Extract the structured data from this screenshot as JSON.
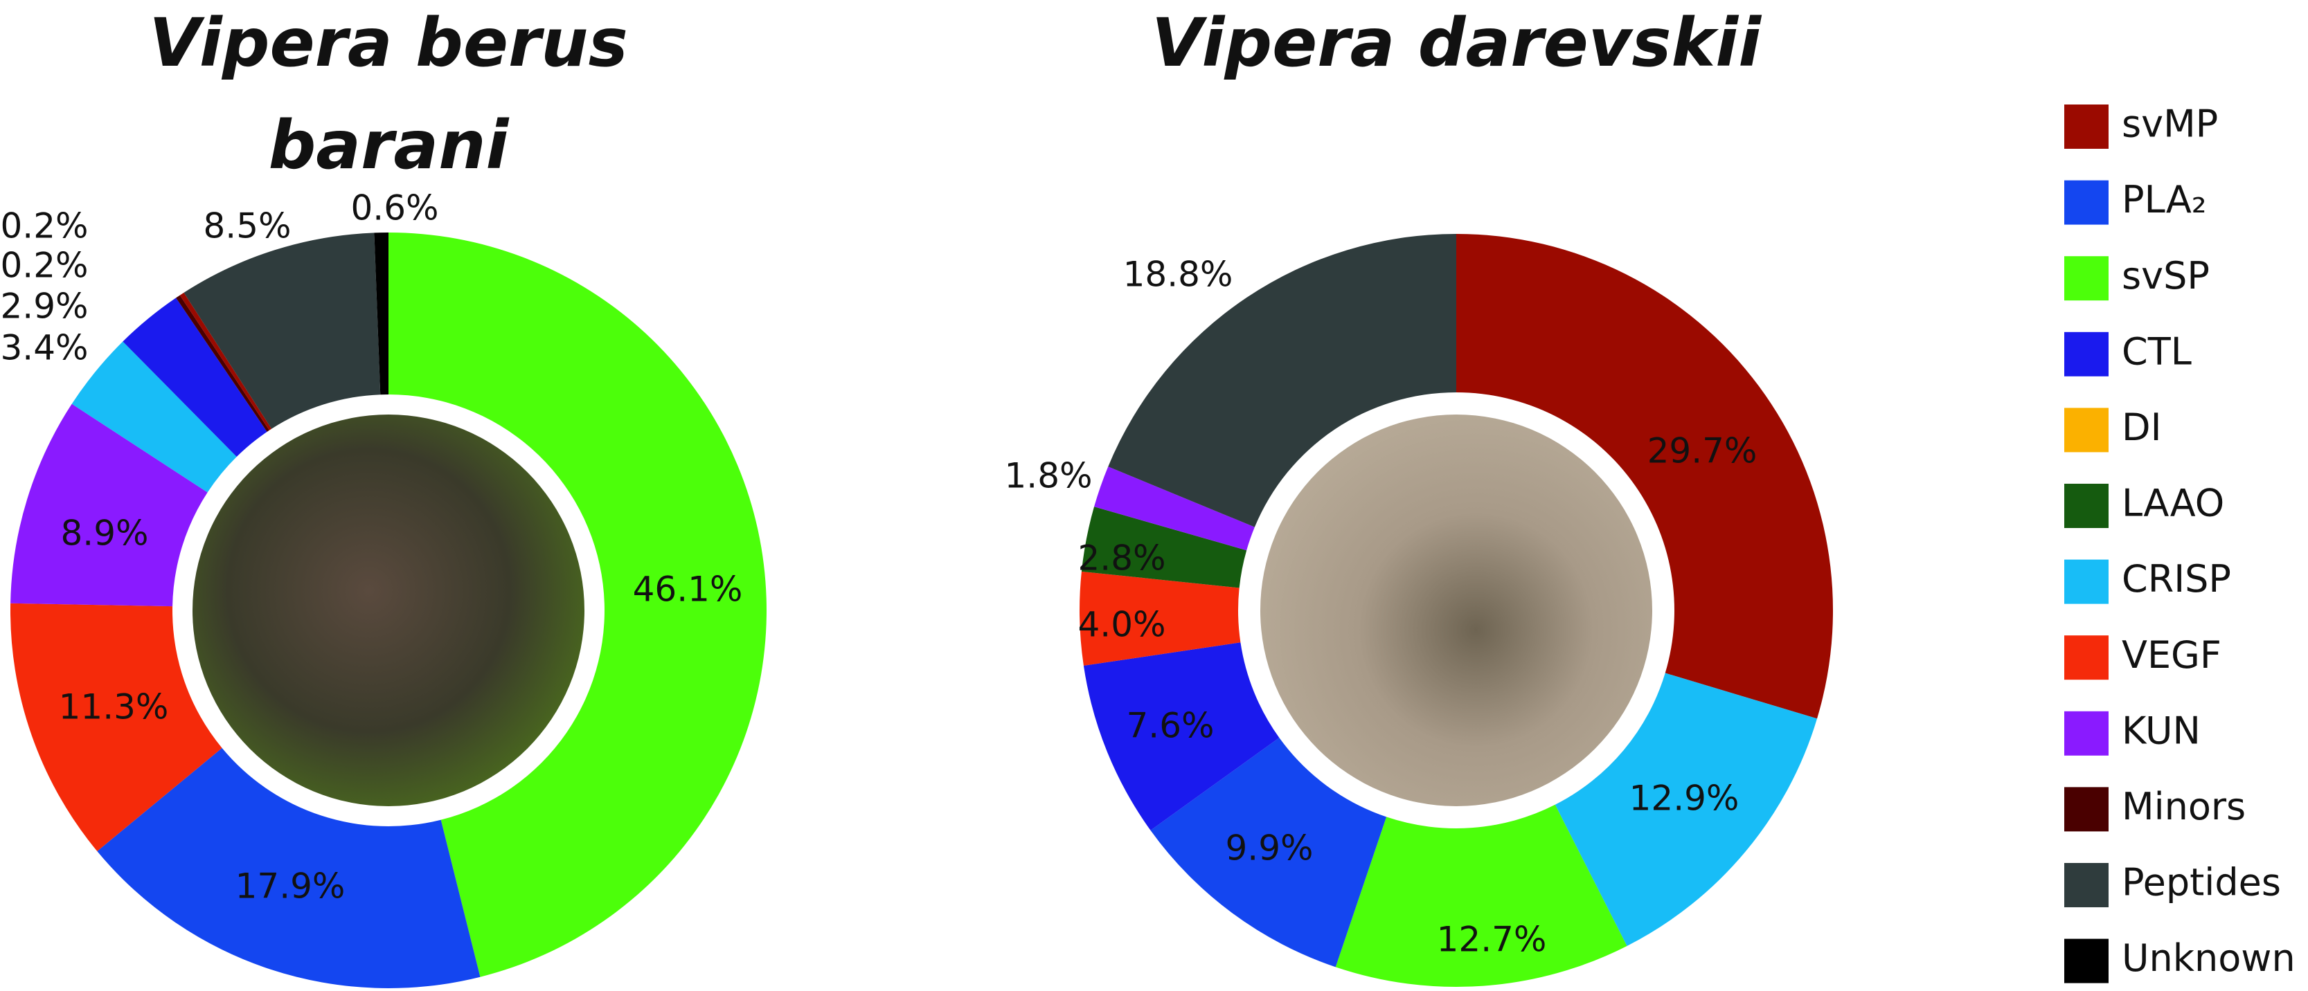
{
  "chart_data": [
    {
      "type": "donut",
      "title": "Vipera berus barani",
      "categories": [
        "svSP",
        "PLA₂",
        "VEGF",
        "KUN",
        "CRISP",
        "CTL",
        "Minors",
        "svMP",
        "Peptides",
        "Unknown"
      ],
      "values": [
        46.1,
        17.9,
        11.3,
        8.9,
        3.4,
        2.9,
        0.2,
        0.2,
        8.5,
        0.6
      ],
      "value_labels": [
        "46.1%",
        "17.9%",
        "11.3%",
        "8.9%",
        "3.4%",
        "2.9%",
        "0.2%",
        "0.2%",
        "8.5%",
        "0.6%"
      ],
      "colors": [
        "#4cff0a",
        "#1446f0",
        "#f52a0a",
        "#8a1aff",
        "#18bdf7",
        "#1a1aee",
        "#4a0000",
        "#9b0a00",
        "#2f3c3d",
        "#000000"
      ]
    },
    {
      "type": "donut",
      "title": "Vipera darevskii",
      "categories": [
        "svMP",
        "CRISP",
        "svSP",
        "PLA₂",
        "CTL",
        "VEGF",
        "LAAO",
        "KUN",
        "Peptides"
      ],
      "values": [
        29.7,
        12.9,
        12.7,
        9.9,
        7.6,
        4.0,
        2.8,
        1.8,
        18.8
      ],
      "value_labels": [
        "29.7%",
        "12.9%",
        "12.7%",
        "9.9%",
        "7.6%",
        "4.0%",
        "2.8%",
        "1.8%",
        "18.8%"
      ],
      "colors": [
        "#9b0a00",
        "#18bdf7",
        "#4cff0a",
        "#1446f0",
        "#1a1aee",
        "#f52a0a",
        "#155b0f",
        "#8a1aff",
        "#2f3c3d"
      ]
    }
  ],
  "legend": {
    "labels": [
      "svMP",
      "PLA₂",
      "svSP",
      "CTL",
      "DI",
      "LAAO",
      "CRISP",
      "VEGF",
      "KUN",
      "Minors",
      "Peptides",
      "Unknown"
    ],
    "colors": [
      "#9b0a00",
      "#1446f0",
      "#4cff0a",
      "#1a1aee",
      "#fbb100",
      "#155b0f",
      "#18bdf7",
      "#f52a0a",
      "#8a1aff",
      "#4a0000",
      "#2f3c3d",
      "#000000"
    ]
  }
}
